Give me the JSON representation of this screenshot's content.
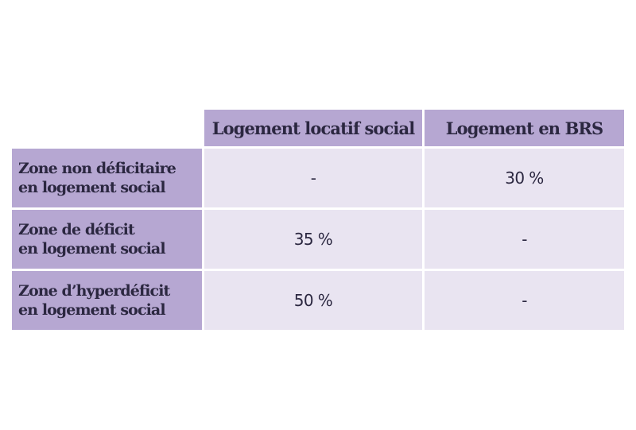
{
  "table": {
    "columns": [
      "Logement locatif social",
      "Logement en BRS"
    ],
    "rows": [
      {
        "label_line1": "Zone non déficitaire",
        "label_line2": "en logement social",
        "values": [
          "-",
          "30 %"
        ]
      },
      {
        "label_line1": "Zone de déficit",
        "label_line2": "en logement social",
        "values": [
          "35 %",
          "-"
        ]
      },
      {
        "label_line1": "Zone d’hyperdéficit",
        "label_line2": "en logement social",
        "values": [
          "50 %",
          "-"
        ]
      }
    ]
  },
  "colors": {
    "header_bg": "#b6a7d2",
    "cell_bg": "#e9e4f1",
    "text": "#2b2740"
  }
}
